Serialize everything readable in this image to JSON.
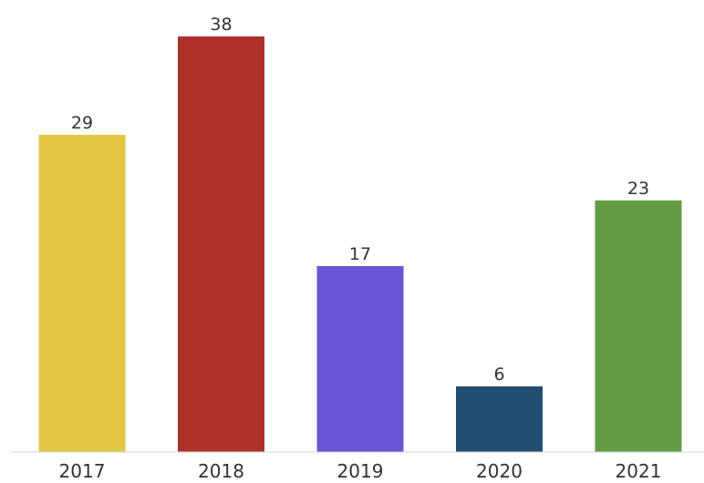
{
  "chart_data": {
    "type": "bar",
    "title": "",
    "xlabel": "",
    "ylabel": "",
    "categories": [
      "2017",
      "2018",
      "2019",
      "2020",
      "2021"
    ],
    "values": [
      29,
      38,
      17,
      6,
      23
    ],
    "colors": [
      "#E2C744",
      "#AD302B",
      "#6A56D4",
      "#234E70",
      "#629C45"
    ],
    "ylim": [
      0,
      38
    ],
    "grid": false,
    "legend": "none",
    "data_labels": true
  }
}
